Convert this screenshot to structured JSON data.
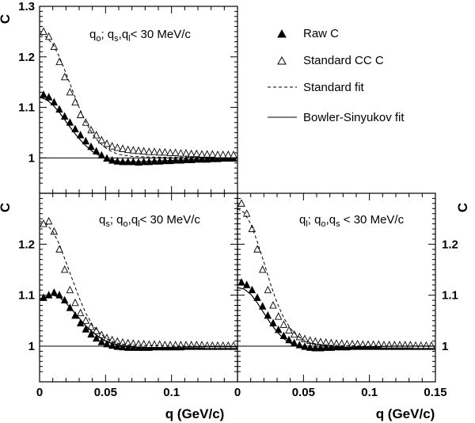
{
  "chart_data": {
    "type": "scatter",
    "y_axis_label": "C",
    "x_axis_label": "q (GeV/c)",
    "legend": {
      "placement": "top-right",
      "entries": [
        {
          "label": "Raw C",
          "marker": "filled-triangle"
        },
        {
          "label": "Standard CC C",
          "marker": "open-triangle"
        },
        {
          "label": "Standard fit",
          "marker": "dashed-line"
        },
        {
          "label": "Bowler-Sinyukov fit",
          "marker": "solid-line"
        }
      ]
    },
    "reference_line": 1.0,
    "panels": [
      {
        "id": "top-left",
        "label": "q_o; q_s,q_l < 30 MeV/c",
        "xlim": [
          0,
          0.15
        ],
        "ylim": [
          0.93,
          1.3
        ],
        "yticks": [
          1,
          1.1,
          1.2,
          1.3
        ],
        "ytick_labels": [
          "1",
          "1.1",
          "1.2",
          "1.3"
        ],
        "xticks": [],
        "xtick_labels": [],
        "series": [
          {
            "name": "Raw C",
            "x": [
              0.003,
              0.007,
              0.011,
              0.015,
              0.019,
              0.023,
              0.027,
              0.031,
              0.035,
              0.039,
              0.043,
              0.047,
              0.051,
              0.055,
              0.059,
              0.063,
              0.067,
              0.071,
              0.075,
              0.079,
              0.083,
              0.087,
              0.091,
              0.095,
              0.099,
              0.103,
              0.107,
              0.111,
              0.115,
              0.119,
              0.123,
              0.127,
              0.131,
              0.135,
              0.139,
              0.143,
              0.147
            ],
            "y": [
              1.125,
              1.12,
              1.11,
              1.096,
              1.082,
              1.07,
              1.057,
              1.045,
              1.033,
              1.022,
              1.013,
              1.005,
              0.999,
              0.995,
              0.993,
              0.992,
              0.992,
              0.992,
              0.991,
              0.992,
              0.992,
              0.993,
              0.993,
              0.994,
              0.994,
              0.995,
              0.995,
              0.996,
              0.996,
              0.997,
              0.997,
              0.997,
              0.998,
              0.998,
              0.999,
              0.999,
              0.999
            ]
          },
          {
            "name": "Standard CC C",
            "x": [
              0.003,
              0.007,
              0.011,
              0.015,
              0.019,
              0.023,
              0.027,
              0.031,
              0.035,
              0.039,
              0.043,
              0.047,
              0.051,
              0.055,
              0.059,
              0.063,
              0.067,
              0.071,
              0.075,
              0.079,
              0.083,
              0.087,
              0.091,
              0.095,
              0.099,
              0.103,
              0.107,
              0.111,
              0.115,
              0.119,
              0.123,
              0.127,
              0.131,
              0.135,
              0.139,
              0.143,
              0.147
            ],
            "y": [
              1.25,
              1.24,
              1.22,
              1.19,
              1.16,
              1.13,
              1.11,
              1.085,
              1.07,
              1.055,
              1.045,
              1.035,
              1.028,
              1.023,
              1.02,
              1.018,
              1.016,
              1.015,
              1.014,
              1.013,
              1.012,
              1.012,
              1.011,
              1.011,
              1.01,
              1.01,
              1.009,
              1.009,
              1.008,
              1.008,
              1.007,
              1.007,
              1.007,
              1.006,
              1.006,
              1.006,
              1.006
            ]
          },
          {
            "name": "Standard fit",
            "style": "dashed",
            "x": [
              0,
              0.005,
              0.01,
              0.015,
              0.02,
              0.025,
              0.03,
              0.035,
              0.04,
              0.045,
              0.05,
              0.055,
              0.06,
              0.07,
              0.08,
              0.09,
              0.1,
              0.12,
              0.15
            ],
            "y": [
              1.245,
              1.24,
              1.225,
              1.2,
              1.168,
              1.133,
              1.1,
              1.071,
              1.048,
              1.031,
              1.02,
              1.012,
              1.007,
              1.003,
              1.002,
              1.0015,
              1.001,
              1.001,
              1.0
            ]
          },
          {
            "name": "Bowler-Sinyukov fit",
            "style": "solid",
            "x": [
              0,
              0.005,
              0.01,
              0.015,
              0.02,
              0.025,
              0.03,
              0.035,
              0.04,
              0.045,
              0.05,
              0.055,
              0.06,
              0.07,
              0.08,
              0.09,
              0.1,
              0.11,
              0.12,
              0.13,
              0.14,
              0.15
            ],
            "y": [
              1.12,
              1.116,
              1.105,
              1.09,
              1.072,
              1.054,
              1.038,
              1.024,
              1.013,
              1.005,
              0.999,
              0.995,
              0.993,
              0.992,
              0.993,
              0.994,
              0.995,
              0.996,
              0.997,
              0.998,
              0.999,
              0.999
            ]
          }
        ]
      },
      {
        "id": "bottom-left",
        "label": "q_s; q_o,q_l < 30 MeV/c",
        "xlim": [
          0,
          0.15
        ],
        "ylim": [
          0.93,
          1.3
        ],
        "yticks": [
          1,
          1.1,
          1.2
        ],
        "ytick_labels": [
          "1",
          "1.1",
          "1.2"
        ],
        "xticks": [
          0,
          0.05,
          0.1
        ],
        "xtick_labels": [
          "0",
          "0.05",
          "0.1"
        ],
        "series": [
          {
            "name": "Raw C",
            "x": [
              0.003,
              0.007,
              0.011,
              0.015,
              0.019,
              0.023,
              0.027,
              0.031,
              0.035,
              0.039,
              0.043,
              0.047,
              0.051,
              0.055,
              0.059,
              0.063,
              0.067,
              0.071,
              0.075,
              0.079,
              0.083,
              0.087,
              0.091,
              0.095,
              0.099,
              0.103,
              0.107,
              0.111,
              0.115,
              0.119,
              0.123,
              0.127,
              0.131,
              0.135,
              0.139,
              0.143,
              0.147
            ],
            "y": [
              1.095,
              1.1,
              1.105,
              1.1,
              1.09,
              1.075,
              1.06,
              1.045,
              1.033,
              1.023,
              1.015,
              1.008,
              1.004,
              1.001,
              0.999,
              0.998,
              0.997,
              0.997,
              0.997,
              0.997,
              0.997,
              0.998,
              0.998,
              0.998,
              0.998,
              0.998,
              0.998,
              0.999,
              0.999,
              0.999,
              0.999,
              0.999,
              0.999,
              0.999,
              0.999,
              0.999,
              0.999
            ]
          },
          {
            "name": "Standard CC C",
            "x": [
              0.003,
              0.007,
              0.011,
              0.015,
              0.019,
              0.023,
              0.027,
              0.031,
              0.035,
              0.039,
              0.043,
              0.047,
              0.051,
              0.055,
              0.059,
              0.063,
              0.067,
              0.071,
              0.075,
              0.079,
              0.083,
              0.087,
              0.091,
              0.095,
              0.099,
              0.103,
              0.107,
              0.111,
              0.115,
              0.119,
              0.123,
              0.127,
              0.131,
              0.135,
              0.139,
              0.143,
              0.147
            ],
            "y": [
              1.24,
              1.245,
              1.225,
              1.19,
              1.15,
              1.11,
              1.085,
              1.065,
              1.05,
              1.038,
              1.03,
              1.022,
              1.016,
              1.012,
              1.009,
              1.007,
              1.006,
              1.005,
              1.004,
              1.004,
              1.003,
              1.003,
              1.003,
              1.002,
              1.002,
              1.002,
              1.002,
              1.002,
              1.002,
              1.002,
              1.002,
              1.001,
              1.001,
              1.001,
              1.001,
              1.001,
              1.001
            ]
          },
          {
            "name": "Standard fit",
            "style": "dashed",
            "x": [
              0,
              0.005,
              0.01,
              0.015,
              0.02,
              0.025,
              0.03,
              0.035,
              0.04,
              0.045,
              0.05,
              0.055,
              0.06,
              0.07,
              0.08,
              0.1,
              0.12,
              0.15
            ],
            "y": [
              1.245,
              1.24,
              1.225,
              1.2,
              1.165,
              1.13,
              1.095,
              1.065,
              1.042,
              1.027,
              1.016,
              1.009,
              1.005,
              1.002,
              1.001,
              1.0,
              1.0,
              1.0
            ]
          },
          {
            "name": "Bowler-Sinyukov fit",
            "style": "solid",
            "x": [
              0,
              0.005,
              0.01,
              0.015,
              0.02,
              0.025,
              0.03,
              0.035,
              0.04,
              0.045,
              0.05,
              0.055,
              0.06,
              0.07,
              0.08,
              0.09,
              0.1,
              0.12,
              0.15
            ],
            "y": [
              1.093,
              1.097,
              1.1,
              1.096,
              1.085,
              1.07,
              1.055,
              1.04,
              1.028,
              1.018,
              1.01,
              1.005,
              1.001,
              0.998,
              0.997,
              0.997,
              0.998,
              0.999,
              0.999
            ]
          }
        ]
      },
      {
        "id": "bottom-right",
        "label": "q_l; q_o,q_s < 30 MeV/c",
        "xlim": [
          0,
          0.15
        ],
        "ylim": [
          0.93,
          1.3
        ],
        "yticks": [
          1,
          1.1,
          1.2
        ],
        "ytick_labels": [
          "1",
          "1.1",
          "1.2"
        ],
        "xticks": [
          0,
          0.05,
          0.1,
          0.15
        ],
        "xtick_labels": [
          "0",
          "0.05",
          "0.1",
          "0.15"
        ],
        "series": [
          {
            "name": "Raw C",
            "x": [
              0.003,
              0.007,
              0.011,
              0.015,
              0.019,
              0.023,
              0.027,
              0.031,
              0.035,
              0.039,
              0.043,
              0.047,
              0.051,
              0.055,
              0.059,
              0.063,
              0.067,
              0.071,
              0.075,
              0.079,
              0.083,
              0.087,
              0.091,
              0.095,
              0.099,
              0.103,
              0.107,
              0.111,
              0.115,
              0.119,
              0.123,
              0.127,
              0.131,
              0.135,
              0.139,
              0.143,
              0.147
            ],
            "y": [
              1.125,
              1.12,
              1.11,
              1.095,
              1.078,
              1.06,
              1.045,
              1.032,
              1.02,
              1.012,
              1.006,
              1.002,
              0.999,
              0.997,
              0.996,
              0.996,
              0.997,
              0.997,
              0.998,
              0.998,
              0.998,
              0.999,
              0.999,
              0.999,
              0.999,
              0.999,
              0.999,
              0.999,
              0.999,
              0.999,
              0.999,
              0.999,
              0.999,
              0.999,
              0.999,
              0.999,
              0.999
            ]
          },
          {
            "name": "Standard CC C",
            "x": [
              0.003,
              0.007,
              0.011,
              0.015,
              0.019,
              0.023,
              0.027,
              0.031,
              0.035,
              0.039,
              0.043,
              0.047,
              0.051,
              0.055,
              0.059,
              0.063,
              0.067,
              0.071,
              0.075,
              0.079,
              0.083,
              0.087,
              0.091,
              0.095,
              0.099,
              0.103,
              0.107,
              0.111,
              0.115,
              0.119,
              0.123,
              0.127,
              0.131,
              0.135,
              0.139,
              0.143,
              0.147
            ],
            "y": [
              1.28,
              1.26,
              1.23,
              1.19,
              1.15,
              1.11,
              1.08,
              1.058,
              1.042,
              1.031,
              1.023,
              1.018,
              1.014,
              1.011,
              1.009,
              1.008,
              1.007,
              1.006,
              1.005,
              1.005,
              1.004,
              1.004,
              1.004,
              1.003,
              1.003,
              1.003,
              1.003,
              1.002,
              1.002,
              1.002,
              1.002,
              1.002,
              1.002,
              1.001,
              1.001,
              1.001,
              1.001
            ]
          },
          {
            "name": "Standard fit",
            "style": "dashed",
            "x": [
              0,
              0.005,
              0.01,
              0.015,
              0.02,
              0.025,
              0.03,
              0.035,
              0.04,
              0.045,
              0.05,
              0.055,
              0.06,
              0.07,
              0.08,
              0.1,
              0.12,
              0.15
            ],
            "y": [
              1.27,
              1.262,
              1.24,
              1.205,
              1.165,
              1.122,
              1.085,
              1.056,
              1.035,
              1.021,
              1.012,
              1.007,
              1.004,
              1.002,
              1.001,
              1.0,
              1.0,
              1.0
            ]
          },
          {
            "name": "Bowler-Sinyukov fit",
            "style": "solid",
            "x": [
              0,
              0.005,
              0.01,
              0.015,
              0.02,
              0.025,
              0.03,
              0.035,
              0.04,
              0.045,
              0.05,
              0.055,
              0.06,
              0.07,
              0.08,
              0.09,
              0.1,
              0.12,
              0.15
            ],
            "y": [
              1.115,
              1.112,
              1.102,
              1.085,
              1.065,
              1.045,
              1.028,
              1.015,
              1.006,
              1.0,
              0.997,
              0.996,
              0.996,
              0.997,
              0.998,
              0.999,
              0.999,
              1.0,
              1.0
            ]
          }
        ]
      }
    ]
  }
}
